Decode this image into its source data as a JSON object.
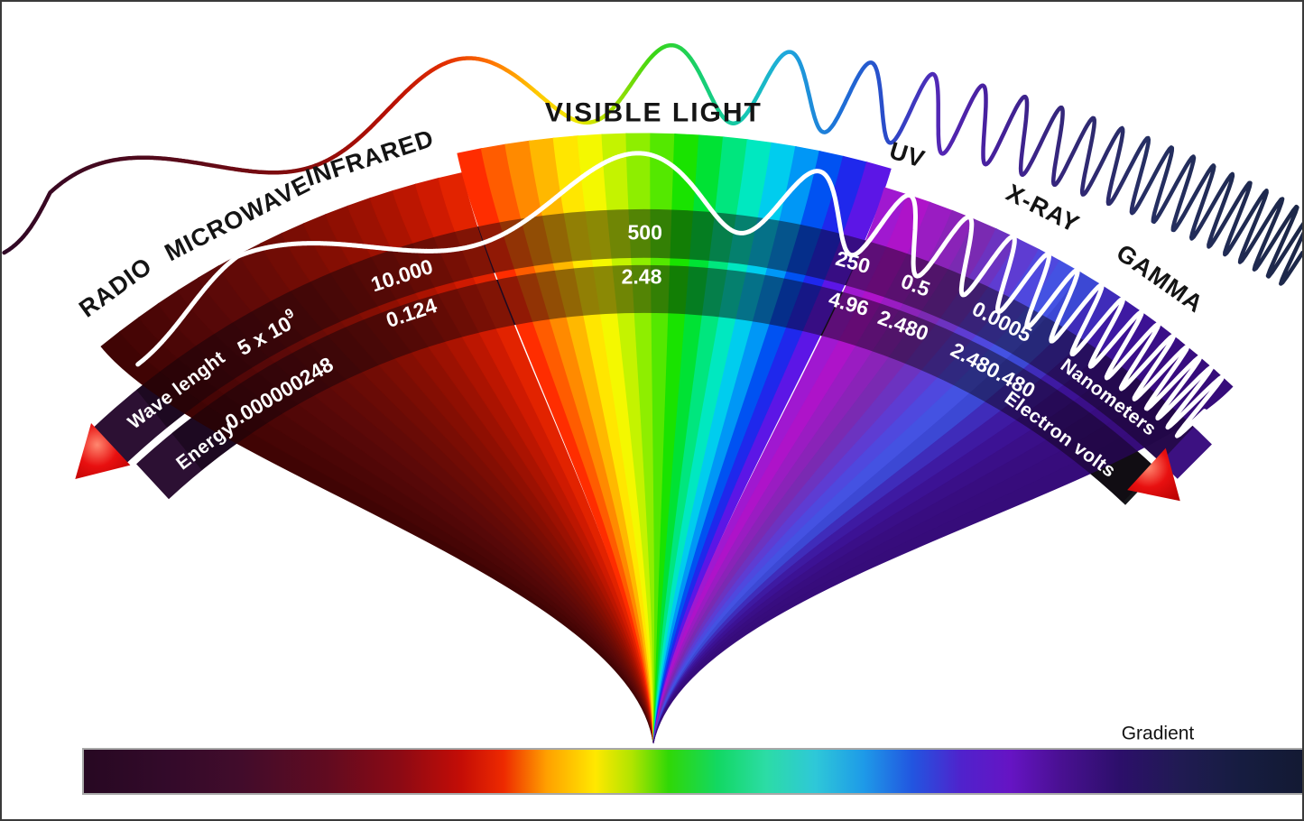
{
  "spectrum_labels": {
    "radio": "RADIO",
    "microwave": "MICROWAVE",
    "infrared": "INFRARED",
    "visible": "VISIBLE LIGHT",
    "uv": "UV",
    "xray": "X-RAY",
    "gamma": "GAMMA"
  },
  "wavelength_band": {
    "label": "Wave lenght",
    "unit": "Nanometers",
    "v_radio_base": "5 x 10",
    "v_radio_exp": "9",
    "v_infrared": "10.000",
    "v_visible": "500",
    "v_uv": "250",
    "v_xray": "0.5",
    "v_gamma": "0.0005"
  },
  "energy_band": {
    "label": "Energy",
    "unit": "Electron volts",
    "v_radio": "0.000000248",
    "v_infrared": "0.124",
    "v_visible": "2.48",
    "v_uv": "4.96",
    "v_xray": "2.480",
    "v_gamma": "2.480.480"
  },
  "gradient_bar": {
    "label": "Gradient"
  },
  "colors": {
    "background": "#ffffff",
    "frame_border": "#3a3a3a",
    "section_label_text": "#141414",
    "band_text": "#ffffff",
    "fan_wave": "#ffffff",
    "band_overlay": "rgba(10,2,12,0.45)",
    "wavelength_band_left": "#2c1033",
    "wavelength_band_right": "#3c1181",
    "energy_band_left": "#2c1033",
    "energy_band_right": "#17171b",
    "arrow_highlight": "#ff8870",
    "arrow_mid": "#e81010",
    "arrow_dark": "#b50000",
    "bar_border": "#a8a8a8",
    "fan_stripes": [
      "#400404",
      "#460505",
      "#4b0606",
      "#510707",
      "#560808",
      "#5c0908",
      "#620a07",
      "#690b06",
      "#710c05",
      "#7a0d04",
      "#840e03",
      "#8f0f02",
      "#9c1102",
      "#ab1301",
      "#bc1601",
      "#cf1a01",
      "#e22300",
      "#ff2d00",
      "#ff5c00",
      "#ff8a00",
      "#ffb800",
      "#ffe600",
      "#f4f800",
      "#c4f300",
      "#8eee00",
      "#54e800",
      "#19e300",
      "#00e234",
      "#00e67e",
      "#00e8c0",
      "#00cdee",
      "#0097f6",
      "#0052f2",
      "#1f28ec",
      "#5c16e6",
      "#a018d0",
      "#ae13c9",
      "#9a1cc2",
      "#8a23b8",
      "#7a2ab2",
      "#6c33c0",
      "#5e3cd2",
      "#4f48de",
      "#4452e2",
      "#3c48d4",
      "#3f2cba",
      "#3e1aa2",
      "#3c1294",
      "#3a0f88",
      "#380d80",
      "#370c7c",
      "#360c7a"
    ],
    "top_wave_gradient": [
      [
        0,
        "#2f0826"
      ],
      [
        0.08,
        "#46091f"
      ],
      [
        0.16,
        "#620a16"
      ],
      [
        0.24,
        "#8c0c0a"
      ],
      [
        0.3,
        "#b81004"
      ],
      [
        0.34,
        "#e22e00"
      ],
      [
        0.375,
        "#ff7300"
      ],
      [
        0.41,
        "#ffc800"
      ],
      [
        0.44,
        "#f0e800"
      ],
      [
        0.47,
        "#9fe000"
      ],
      [
        0.5,
        "#3ad614"
      ],
      [
        0.535,
        "#17cf6f"
      ],
      [
        0.57,
        "#15c7b4"
      ],
      [
        0.6,
        "#1fa9dc"
      ],
      [
        0.64,
        "#1d73d8"
      ],
      [
        0.68,
        "#2b49c8"
      ],
      [
        0.72,
        "#5426b4"
      ],
      [
        0.76,
        "#46209c"
      ],
      [
        0.82,
        "#322876"
      ],
      [
        0.88,
        "#252f62"
      ],
      [
        1,
        "#1c2747"
      ]
    ],
    "bar_gradient": [
      [
        0,
        "#270822"
      ],
      [
        0.07,
        "#330a2a"
      ],
      [
        0.13,
        "#420c2b"
      ],
      [
        0.2,
        "#610b20"
      ],
      [
        0.26,
        "#8c0a14"
      ],
      [
        0.31,
        "#c40d06"
      ],
      [
        0.345,
        "#ee2a00"
      ],
      [
        0.38,
        "#ffa000"
      ],
      [
        0.42,
        "#ffe800"
      ],
      [
        0.45,
        "#b0e400"
      ],
      [
        0.48,
        "#30d806"
      ],
      [
        0.52,
        "#12d862"
      ],
      [
        0.56,
        "#2cdca6"
      ],
      [
        0.6,
        "#2ec8d8"
      ],
      [
        0.64,
        "#1e9ae8"
      ],
      [
        0.68,
        "#2255e0"
      ],
      [
        0.72,
        "#5022cc"
      ],
      [
        0.76,
        "#6614c4"
      ],
      [
        0.8,
        "#4a1093"
      ],
      [
        0.85,
        "#2c0f6a"
      ],
      [
        0.9,
        "#201b52"
      ],
      [
        0.95,
        "#161c40"
      ],
      [
        1,
        "#131a33"
      ]
    ]
  }
}
